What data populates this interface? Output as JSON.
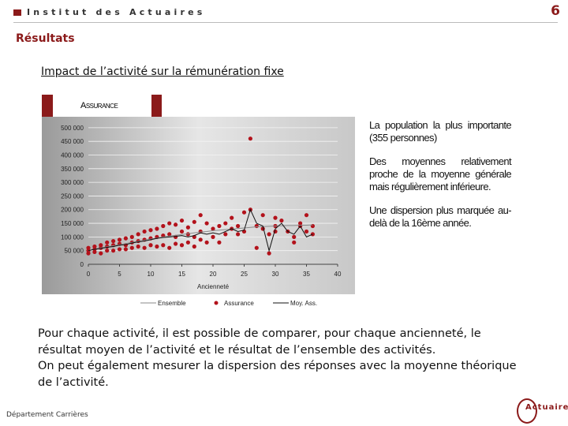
{
  "header": {
    "brand": "Institut des Actuaires",
    "page_number": "6"
  },
  "section_title": "Résultats",
  "slide_title": "Impact de l’activité sur la rémunération fixe",
  "chart_data": {
    "type": "scatter",
    "header": "Assurance",
    "x_label": "Ancienneté",
    "xlim": [
      0,
      40
    ],
    "xticks": [
      0,
      5,
      10,
      15,
      20,
      25,
      30,
      35,
      40
    ],
    "ylim": [
      0,
      540000
    ],
    "yticks": [
      0,
      {
        "value": 50000,
        "label": "50 000"
      },
      {
        "value": 100000,
        "label": "100 000"
      },
      {
        "value": 150000,
        "label": "150 000"
      },
      {
        "value": 200000,
        "label": "200 000"
      },
      {
        "value": 250000,
        "label": "250 000"
      },
      {
        "value": 300000,
        "label": "300 000"
      },
      {
        "value": 350000,
        "label": "350 000"
      },
      {
        "value": 400000,
        "label": "400 000"
      },
      {
        "value": 450000,
        "label": "450 000"
      },
      {
        "value": 500000,
        "label": "500 000"
      }
    ],
    "grid": true,
    "x": [
      0,
      1,
      2,
      3,
      4,
      5,
      6,
      7,
      8,
      9,
      10,
      11,
      12,
      13,
      14,
      15,
      16,
      17,
      18,
      19,
      20,
      21,
      22,
      23,
      24,
      25,
      26,
      27,
      28,
      29,
      30,
      31,
      32,
      33,
      34,
      35,
      36
    ],
    "series": [
      {
        "name": "Ensemble",
        "kind": "line",
        "color": "#8a8a8a",
        "values": [
          50000,
          55000,
          60000,
          64000,
          68000,
          72000,
          76000,
          80000,
          84000,
          88000,
          92000,
          96000,
          100000,
          103000,
          106000,
          109000,
          112000,
          115000,
          118000,
          120000,
          123000,
          125000,
          127000,
          129000,
          131000,
          133000,
          135000,
          137000,
          138000,
          139000,
          140000,
          141000,
          142000,
          142000,
          143000,
          143000,
          144000
        ]
      },
      {
        "name": "Assurance",
        "kind": "points",
        "color": "#b3121b",
        "x": [
          0,
          0,
          0,
          1,
          1,
          1,
          2,
          2,
          2,
          3,
          3,
          3,
          4,
          4,
          4,
          5,
          5,
          5,
          6,
          6,
          6,
          7,
          7,
          7,
          8,
          8,
          8,
          9,
          9,
          9,
          10,
          10,
          10,
          11,
          11,
          11,
          12,
          12,
          12,
          13,
          13,
          13,
          14,
          14,
          14,
          15,
          15,
          15,
          16,
          16,
          16,
          17,
          17,
          17,
          18,
          18,
          18,
          19,
          19,
          20,
          20,
          21,
          21,
          22,
          22,
          23,
          23,
          24,
          24,
          25,
          25,
          26,
          26,
          27,
          27,
          28,
          28,
          29,
          29,
          30,
          30,
          30,
          31,
          32,
          33,
          33,
          34,
          34,
          35,
          35,
          36,
          36
        ],
        "values": [
          40000,
          50000,
          60000,
          45000,
          55000,
          65000,
          40000,
          60000,
          70000,
          50000,
          65000,
          80000,
          50000,
          70000,
          85000,
          55000,
          75000,
          90000,
          55000,
          70000,
          95000,
          60000,
          80000,
          100000,
          65000,
          85000,
          110000,
          60000,
          90000,
          120000,
          70000,
          95000,
          125000,
          65000,
          100000,
          130000,
          70000,
          105000,
          140000,
          60000,
          110000,
          150000,
          75000,
          100000,
          145000,
          70000,
          120000,
          160000,
          80000,
          110000,
          135000,
          65000,
          100000,
          155000,
          90000,
          120000,
          180000,
          80000,
          150000,
          100000,
          130000,
          80000,
          140000,
          110000,
          150000,
          130000,
          170000,
          110000,
          140000,
          120000,
          190000,
          460000,
          200000,
          140000,
          60000,
          130000,
          180000,
          40000,
          110000,
          120000,
          140000,
          170000,
          160000,
          120000,
          100000,
          80000,
          140000,
          150000,
          180000,
          120000,
          110000,
          140000
        ]
      },
      {
        "name": "Moy. Ass.",
        "kind": "line",
        "color": "#111111",
        "values": [
          50000,
          55000,
          58000,
          62000,
          65000,
          70000,
          72000,
          78000,
          82000,
          85000,
          90000,
          95000,
          98000,
          100000,
          102000,
          105000,
          100000,
          105000,
          115000,
          110000,
          115000,
          110000,
          120000,
          130000,
          120000,
          125000,
          200000,
          150000,
          140000,
          50000,
          130000,
          150000,
          120000,
          110000,
          140000,
          100000,
          110000
        ]
      }
    ]
  },
  "side_text": [
    "La population la plus importante (355 personnes)",
    "Des moyennes relativement proche de la moyenne générale mais régulièrement inférieure.",
    "Une dispersion plus marquée au-delà de la 16ème année."
  ],
  "body": [
    "Pour chaque activité, il est possible de comparer, pour chaque ancienneté, le",
    "résultat moyen de l’activité et le résultat de l’ensemble des activités.",
    "On peut également mesurer la dispersion des réponses avec la moyenne théorique",
    "de l’activité."
  ],
  "footer": {
    "department": "Département Carrières",
    "logo": "Actuaires"
  }
}
